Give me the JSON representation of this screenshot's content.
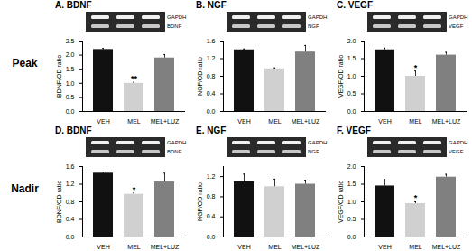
{
  "chart_data": [
    {
      "type": "bar",
      "row_label": "Peak",
      "title": "A. BDNF",
      "gel_labels": [
        "GAPDH",
        "BDNF"
      ],
      "ylabel": "BDNF/OD ratio",
      "categories": [
        "VEH",
        "MEL",
        "MEL+LUZ"
      ],
      "values": [
        2.2,
        1.0,
        1.9
      ],
      "errors": [
        0.04,
        0.04,
        0.12
      ],
      "annotations": [
        null,
        "**",
        null
      ],
      "colors": [
        "#111111",
        "#d0d0d0",
        "#808080"
      ],
      "ylim": [
        0,
        2.5
      ],
      "yticks": [
        {
          "value": 0,
          "label": "0.0"
        },
        {
          "value": 0.5,
          "label": "0.5"
        },
        {
          "value": 1,
          "label": "1.0"
        },
        {
          "value": 1.5,
          "label": "1.5"
        },
        {
          "value": 2,
          "label": "2.0"
        },
        {
          "value": 2.5,
          "label": "2.5"
        }
      ]
    },
    {
      "type": "bar",
      "row_label": "Peak",
      "title": "B. NGF",
      "gel_labels": [
        "GAPDH",
        "NGF"
      ],
      "ylabel": "NGF/OD ratio",
      "categories": [
        "VEH",
        "MEL",
        "MEL+LUZ"
      ],
      "values": [
        1.4,
        0.97,
        1.35
      ],
      "errors": [
        0.02,
        0.02,
        0.15
      ],
      "annotations": [
        null,
        null,
        null
      ],
      "colors": [
        "#111111",
        "#d0d0d0",
        "#808080"
      ],
      "ylim": [
        0,
        1.6
      ],
      "yticks": [
        {
          "value": 0,
          "label": "0.0"
        },
        {
          "value": 0.4,
          "label": "0.4"
        },
        {
          "value": 0.8,
          "label": "0.8"
        },
        {
          "value": 1.2,
          "label": "1.2"
        },
        {
          "value": 1.6,
          "label": "1.6"
        }
      ]
    },
    {
      "type": "bar",
      "row_label": "Peak",
      "title": "C. VEGF",
      "gel_labels": [
        "GAPDH",
        "VEGF"
      ],
      "ylabel": "VEGF/OD ratio",
      "categories": [
        "VEH",
        "MEL",
        "MEL+LUZ"
      ],
      "values": [
        1.75,
        1.0,
        1.6
      ],
      "errors": [
        0.05,
        0.15,
        0.08
      ],
      "annotations": [
        null,
        "*",
        null
      ],
      "colors": [
        "#111111",
        "#d0d0d0",
        "#808080"
      ],
      "ylim": [
        0,
        2.0
      ],
      "yticks": [
        {
          "value": 0,
          "label": "0.0"
        },
        {
          "value": 0.5,
          "label": "0.5"
        },
        {
          "value": 1,
          "label": "1.0"
        },
        {
          "value": 1.5,
          "label": "1.5"
        },
        {
          "value": 2,
          "label": "2.0"
        }
      ]
    },
    {
      "type": "bar",
      "row_label": "Nadir",
      "title": "D. BDNF",
      "gel_labels": [
        "GAPDH",
        "BDNF"
      ],
      "ylabel": "BDNF/OD ratio",
      "categories": [
        "VEH",
        "MEL",
        "MEL+LUZ"
      ],
      "values": [
        1.45,
        0.97,
        1.25
      ],
      "errors": [
        0.02,
        0.03,
        0.2
      ],
      "annotations": [
        null,
        "*",
        null
      ],
      "colors": [
        "#111111",
        "#d0d0d0",
        "#808080"
      ],
      "ylim": [
        0,
        1.6
      ],
      "yticks": [
        {
          "value": 0,
          "label": "0.0"
        },
        {
          "value": 0.4,
          "label": "0.4"
        },
        {
          "value": 0.8,
          "label": "0.8"
        },
        {
          "value": 1.2,
          "label": "1.2"
        },
        {
          "value": 1.6,
          "label": "1.6"
        }
      ]
    },
    {
      "type": "bar",
      "row_label": "Nadir",
      "title": "E. NGF",
      "gel_labels": [
        "GAPDH",
        "NGF"
      ],
      "ylabel": "NGF/OD ratio",
      "categories": [
        "VEH",
        "MEL",
        "MEL+LUZ"
      ],
      "values": [
        1.1,
        1.0,
        1.05
      ],
      "errors": [
        0.15,
        0.15,
        0.08
      ],
      "annotations": [
        null,
        null,
        null
      ],
      "colors": [
        "#111111",
        "#d0d0d0",
        "#808080"
      ],
      "ylim": [
        0,
        1.4
      ],
      "yticks": [
        {
          "value": 0,
          "label": "0.0"
        },
        {
          "value": 0.4,
          "label": "0.4"
        },
        {
          "value": 0.8,
          "label": "0.8"
        },
        {
          "value": 1.2,
          "label": "1.2"
        }
      ]
    },
    {
      "type": "bar",
      "row_label": "Nadir",
      "title": "F. VEGF",
      "gel_labels": [
        "GAPDH",
        "VEGF"
      ],
      "ylabel": "VEGF/OD ratio",
      "categories": [
        "VEH",
        "MEL",
        "MEL+LUZ"
      ],
      "values": [
        1.45,
        0.95,
        1.7
      ],
      "errors": [
        0.18,
        0.05,
        0.08
      ],
      "annotations": [
        null,
        "*",
        null
      ],
      "colors": [
        "#111111",
        "#d0d0d0",
        "#808080"
      ],
      "ylim": [
        0,
        2.0
      ],
      "yticks": [
        {
          "value": 0,
          "label": "0.0"
        },
        {
          "value": 0.5,
          "label": "0.5"
        },
        {
          "value": 1,
          "label": "1.0"
        },
        {
          "value": 1.5,
          "label": "1.5"
        },
        {
          "value": 2,
          "label": "2.0"
        }
      ]
    }
  ]
}
